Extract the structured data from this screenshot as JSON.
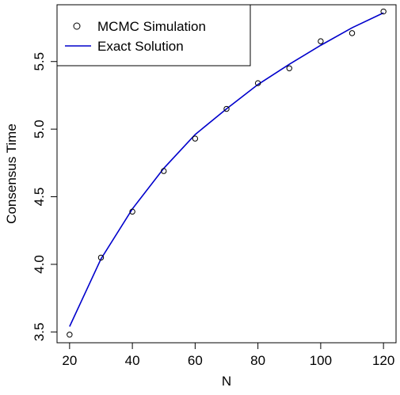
{
  "chart_data": {
    "type": "line",
    "title": "",
    "xlabel": "N",
    "ylabel": "Consensus Time",
    "xlim": [
      16,
      124
    ],
    "ylim": [
      3.42,
      5.92
    ],
    "grid": false,
    "legend_position": "top-left",
    "x_ticks": [
      20,
      40,
      60,
      80,
      100,
      120
    ],
    "x_tick_labels": [
      "20",
      "40",
      "60",
      "80",
      "100",
      "120"
    ],
    "y_ticks": [
      3.5,
      4.0,
      4.5,
      5.0,
      5.5
    ],
    "y_tick_labels": [
      "3.5",
      "4.0",
      "4.5",
      "5.0",
      "5.5"
    ],
    "series": [
      {
        "name": "MCMC Simulation",
        "kind": "points",
        "marker": "open-circle",
        "color": "#000000",
        "x": [
          20,
          30,
          40,
          50,
          60,
          70,
          80,
          90,
          100,
          110,
          120
        ],
        "y": [
          3.48,
          4.05,
          4.39,
          4.69,
          4.93,
          5.15,
          5.34,
          5.45,
          5.65,
          5.71,
          5.87
        ]
      },
      {
        "name": "Exact Solution",
        "kind": "line",
        "color": "#0000cc",
        "x": [
          20,
          30,
          40,
          50,
          60,
          70,
          80,
          90,
          100,
          110,
          120
        ],
        "y": [
          3.54,
          4.04,
          4.41,
          4.71,
          4.96,
          5.15,
          5.33,
          5.48,
          5.62,
          5.75,
          5.86
        ]
      }
    ]
  }
}
